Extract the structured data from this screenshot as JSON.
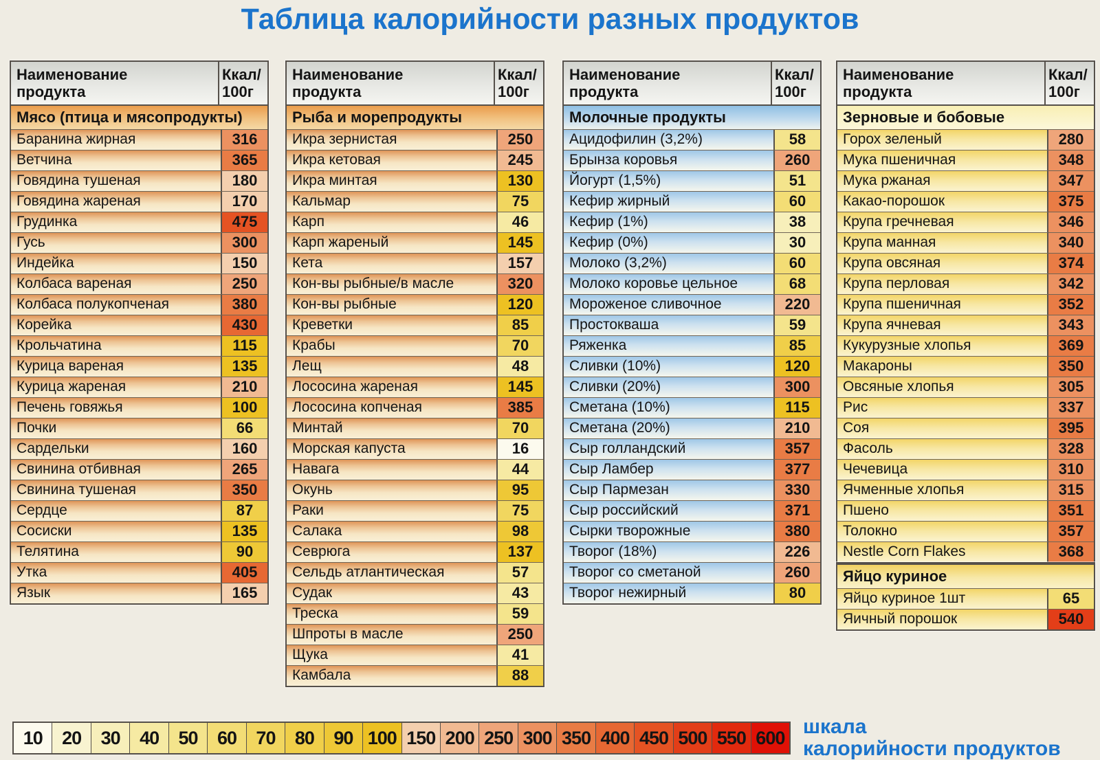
{
  "title": "Таблица калорийности разных продуктов",
  "colors": {
    "accent_blue": "#1b74cc",
    "table_border": "#55504a"
  },
  "column_header": {
    "name_line1": "Наименование",
    "name_line2": "продукта",
    "kcal_line1": "Ккал/",
    "kcal_line2": "100г"
  },
  "tables": [
    {
      "id": "meat",
      "theme": "warm",
      "show_column_header": true,
      "section": "Мясо (птица и мясопродукты)",
      "rows": [
        {
          "name": "Баранина жирная",
          "kcal": 316
        },
        {
          "name": "Ветчина",
          "kcal": 365
        },
        {
          "name": "Говядина тушеная",
          "kcal": 180
        },
        {
          "name": "Говядина жареная",
          "kcal": 170
        },
        {
          "name": "Грудинка",
          "kcal": 475
        },
        {
          "name": "Гусь",
          "kcal": 300
        },
        {
          "name": "Индейка",
          "kcal": 150
        },
        {
          "name": "Колбаса вареная",
          "kcal": 250
        },
        {
          "name": "Колбаса полукопченая",
          "kcal": 380
        },
        {
          "name": "Корейка",
          "kcal": 430
        },
        {
          "name": "Крольчатина",
          "kcal": 115
        },
        {
          "name": "Курица вареная",
          "kcal": 135
        },
        {
          "name": "Курица жареная",
          "kcal": 210
        },
        {
          "name": "Печень говяжья",
          "kcal": 100
        },
        {
          "name": "Почки",
          "kcal": 66
        },
        {
          "name": "Сардельки",
          "kcal": 160
        },
        {
          "name": "Свинина отбивная",
          "kcal": 265
        },
        {
          "name": "Свинина тушеная",
          "kcal": 350
        },
        {
          "name": "Сердце",
          "kcal": 87
        },
        {
          "name": "Сосиски",
          "kcal": 135
        },
        {
          "name": "Телятина",
          "kcal": 90
        },
        {
          "name": "Утка",
          "kcal": 405
        },
        {
          "name": "Язык",
          "kcal": 165
        }
      ]
    },
    {
      "id": "fish",
      "theme": "warm",
      "show_column_header": true,
      "section": "Рыба и морепродукты",
      "rows": [
        {
          "name": "Икра зернистая",
          "kcal": 250
        },
        {
          "name": "Икра кетовая",
          "kcal": 245
        },
        {
          "name": "Икра минтая",
          "kcal": 130
        },
        {
          "name": "Кальмар",
          "kcal": 75
        },
        {
          "name": "Карп",
          "kcal": 46
        },
        {
          "name": "Карп жареный",
          "kcal": 145
        },
        {
          "name": "Кета",
          "kcal": 157
        },
        {
          "name": "Кон-вы рыбные/в масле",
          "kcal": 320
        },
        {
          "name": "Кон-вы рыбные",
          "kcal": 120
        },
        {
          "name": "Креветки",
          "kcal": 85
        },
        {
          "name": "Крабы",
          "kcal": 70
        },
        {
          "name": "Лещ",
          "kcal": 48
        },
        {
          "name": "Лососина жареная",
          "kcal": 145
        },
        {
          "name": "Лососина копченая",
          "kcal": 385
        },
        {
          "name": "Минтай",
          "kcal": 70
        },
        {
          "name": "Морская капуста",
          "kcal": 16
        },
        {
          "name": "Навага",
          "kcal": 44
        },
        {
          "name": "Окунь",
          "kcal": 95
        },
        {
          "name": "Раки",
          "kcal": 75
        },
        {
          "name": "Салака",
          "kcal": 98
        },
        {
          "name": "Севрюга",
          "kcal": 137
        },
        {
          "name": "Сельдь атлантическая",
          "kcal": 57
        },
        {
          "name": "Судак",
          "kcal": 43
        },
        {
          "name": "Треска",
          "kcal": 59
        },
        {
          "name": "Шпроты в масле",
          "kcal": 250
        },
        {
          "name": "Щука",
          "kcal": 41
        },
        {
          "name": "Камбала",
          "kcal": 88
        }
      ]
    },
    {
      "id": "dairy",
      "theme": "dairy",
      "show_column_header": true,
      "section": "Молочные продукты",
      "rows": [
        {
          "name": "Ацидофилин (3,2%)",
          "kcal": 58
        },
        {
          "name": "Брынза коровья",
          "kcal": 260
        },
        {
          "name": "Йогурт (1,5%)",
          "kcal": 51
        },
        {
          "name": "Кефир жирный",
          "kcal": 60
        },
        {
          "name": "Кефир (1%)",
          "kcal": 38
        },
        {
          "name": "Кефир (0%)",
          "kcal": 30
        },
        {
          "name": "Молоко (3,2%)",
          "kcal": 60
        },
        {
          "name": "Молоко коровье цельное",
          "kcal": 68
        },
        {
          "name": "Мороженое сливочное",
          "kcal": 220
        },
        {
          "name": "Простокваша",
          "kcal": 59
        },
        {
          "name": "Ряженка",
          "kcal": 85
        },
        {
          "name": "Сливки (10%)",
          "kcal": 120
        },
        {
          "name": "Сливки (20%)",
          "kcal": 300
        },
        {
          "name": "Сметана (10%)",
          "kcal": 115
        },
        {
          "name": "Сметана (20%)",
          "kcal": 210
        },
        {
          "name": "Сыр голландский",
          "kcal": 357
        },
        {
          "name": "Сыр Ламбер",
          "kcal": 377
        },
        {
          "name": "Сыр Пармезан",
          "kcal": 330
        },
        {
          "name": "Сыр российский",
          "kcal": 371
        },
        {
          "name": "Сырки творожные",
          "kcal": 380
        },
        {
          "name": "Творог (18%)",
          "kcal": 226
        },
        {
          "name": "Творог со сметаной",
          "kcal": 260
        },
        {
          "name": "Творог нежирный",
          "kcal": 80
        }
      ]
    },
    {
      "id": "grain",
      "theme": "grain",
      "show_column_header": true,
      "section": "Зерновые и бобовые",
      "rows": [
        {
          "name": "Горох зеленый",
          "kcal": 280
        },
        {
          "name": "Мука пшеничная",
          "kcal": 348
        },
        {
          "name": "Мука ржаная",
          "kcal": 347
        },
        {
          "name": "Какао-порошок",
          "kcal": 375
        },
        {
          "name": "Крупа гречневая",
          "kcal": 346
        },
        {
          "name": "Крупа манная",
          "kcal": 340
        },
        {
          "name": "Крупа овсяная",
          "kcal": 374
        },
        {
          "name": "Крупа перловая",
          "kcal": 342
        },
        {
          "name": "Крупа пшеничная",
          "kcal": 352
        },
        {
          "name": "Крупа ячневая",
          "kcal": 343
        },
        {
          "name": "Кукурузные хлопья",
          "kcal": 369
        },
        {
          "name": "Макароны",
          "kcal": 350
        },
        {
          "name": "Овсяные хлопья",
          "kcal": 305
        },
        {
          "name": "Рис",
          "kcal": 337
        },
        {
          "name": "Соя",
          "kcal": 395
        },
        {
          "name": "Фасоль",
          "kcal": 328
        },
        {
          "name": "Чечевица",
          "kcal": 310
        },
        {
          "name": "Ячменные хлопья",
          "kcal": 315
        },
        {
          "name": "Пшено",
          "kcal": 351
        },
        {
          "name": "Толокно",
          "kcal": 357
        },
        {
          "name": "Nestle Corn Flakes",
          "kcal": 368
        }
      ]
    },
    {
      "id": "egg",
      "theme": "egg",
      "show_column_header": false,
      "section": "Яйцо куриное",
      "rows": [
        {
          "name": "Яйцо куриное 1шт",
          "kcal": 65
        },
        {
          "name": "Яичный порошок",
          "kcal": 540
        }
      ]
    }
  ],
  "scale": {
    "label_line1": "шкала",
    "label_line2": "калорийности продуктов",
    "stops": [
      {
        "value": 10,
        "color": "#fcfaee"
      },
      {
        "value": 20,
        "color": "#f8f3d0"
      },
      {
        "value": 30,
        "color": "#f7efba"
      },
      {
        "value": 40,
        "color": "#f6eaa3"
      },
      {
        "value": 50,
        "color": "#f4e48c"
      },
      {
        "value": 60,
        "color": "#f3dd75"
      },
      {
        "value": 70,
        "color": "#f1d65f"
      },
      {
        "value": 80,
        "color": "#f0cf49"
      },
      {
        "value": 90,
        "color": "#eec836"
      },
      {
        "value": 100,
        "color": "#edc122"
      },
      {
        "value": 150,
        "color": "#f4cfae"
      },
      {
        "value": 200,
        "color": "#f1ba92"
      },
      {
        "value": 250,
        "color": "#efa57a"
      },
      {
        "value": 300,
        "color": "#ec9160"
      },
      {
        "value": 350,
        "color": "#e97c45"
      },
      {
        "value": 400,
        "color": "#e76833"
      },
      {
        "value": 450,
        "color": "#e55323"
      },
      {
        "value": 500,
        "color": "#e33e18"
      },
      {
        "value": 550,
        "color": "#e22a0e"
      },
      {
        "value": 600,
        "color": "#e01106"
      }
    ]
  }
}
